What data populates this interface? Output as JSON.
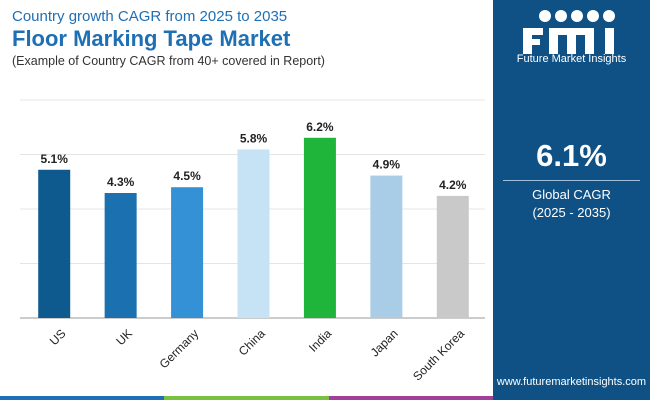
{
  "header": {
    "subtitle_top": "Country growth CAGR from 2025 to 2035",
    "title": "Floor Marking Tape Market",
    "note": "(Example of Country CAGR from 40+ covered in Report)"
  },
  "panel": {
    "logo_text": "Future Market Insights",
    "logo_icon": "fmi-logo-icon",
    "global_value": "6.1%",
    "global_label_line1": "Global CAGR",
    "global_label_line2": "(2025 - 2035)",
    "url": "www.futuremarketinsights.com"
  },
  "chart_data": {
    "type": "bar",
    "categories": [
      "US",
      "UK",
      "Germany",
      "China",
      "India",
      "Japan",
      "South Korea"
    ],
    "values": [
      5.1,
      4.3,
      4.5,
      5.8,
      6.2,
      4.9,
      4.2
    ],
    "value_labels": [
      "5.1%",
      "4.3%",
      "4.5%",
      "5.8%",
      "6.2%",
      "4.9%",
      "4.2%"
    ],
    "colors": [
      "#0e5a8f",
      "#1b70b0",
      "#3591d6",
      "#c6e2f5",
      "#1eb53a",
      "#a9cde6",
      "#c9c9c9"
    ],
    "ylim": [
      0,
      7.5
    ],
    "grid": true,
    "legend": "none"
  },
  "bottom_bar_colors": [
    "#1f6fb4",
    "#7ac142",
    "#a0409a"
  ]
}
